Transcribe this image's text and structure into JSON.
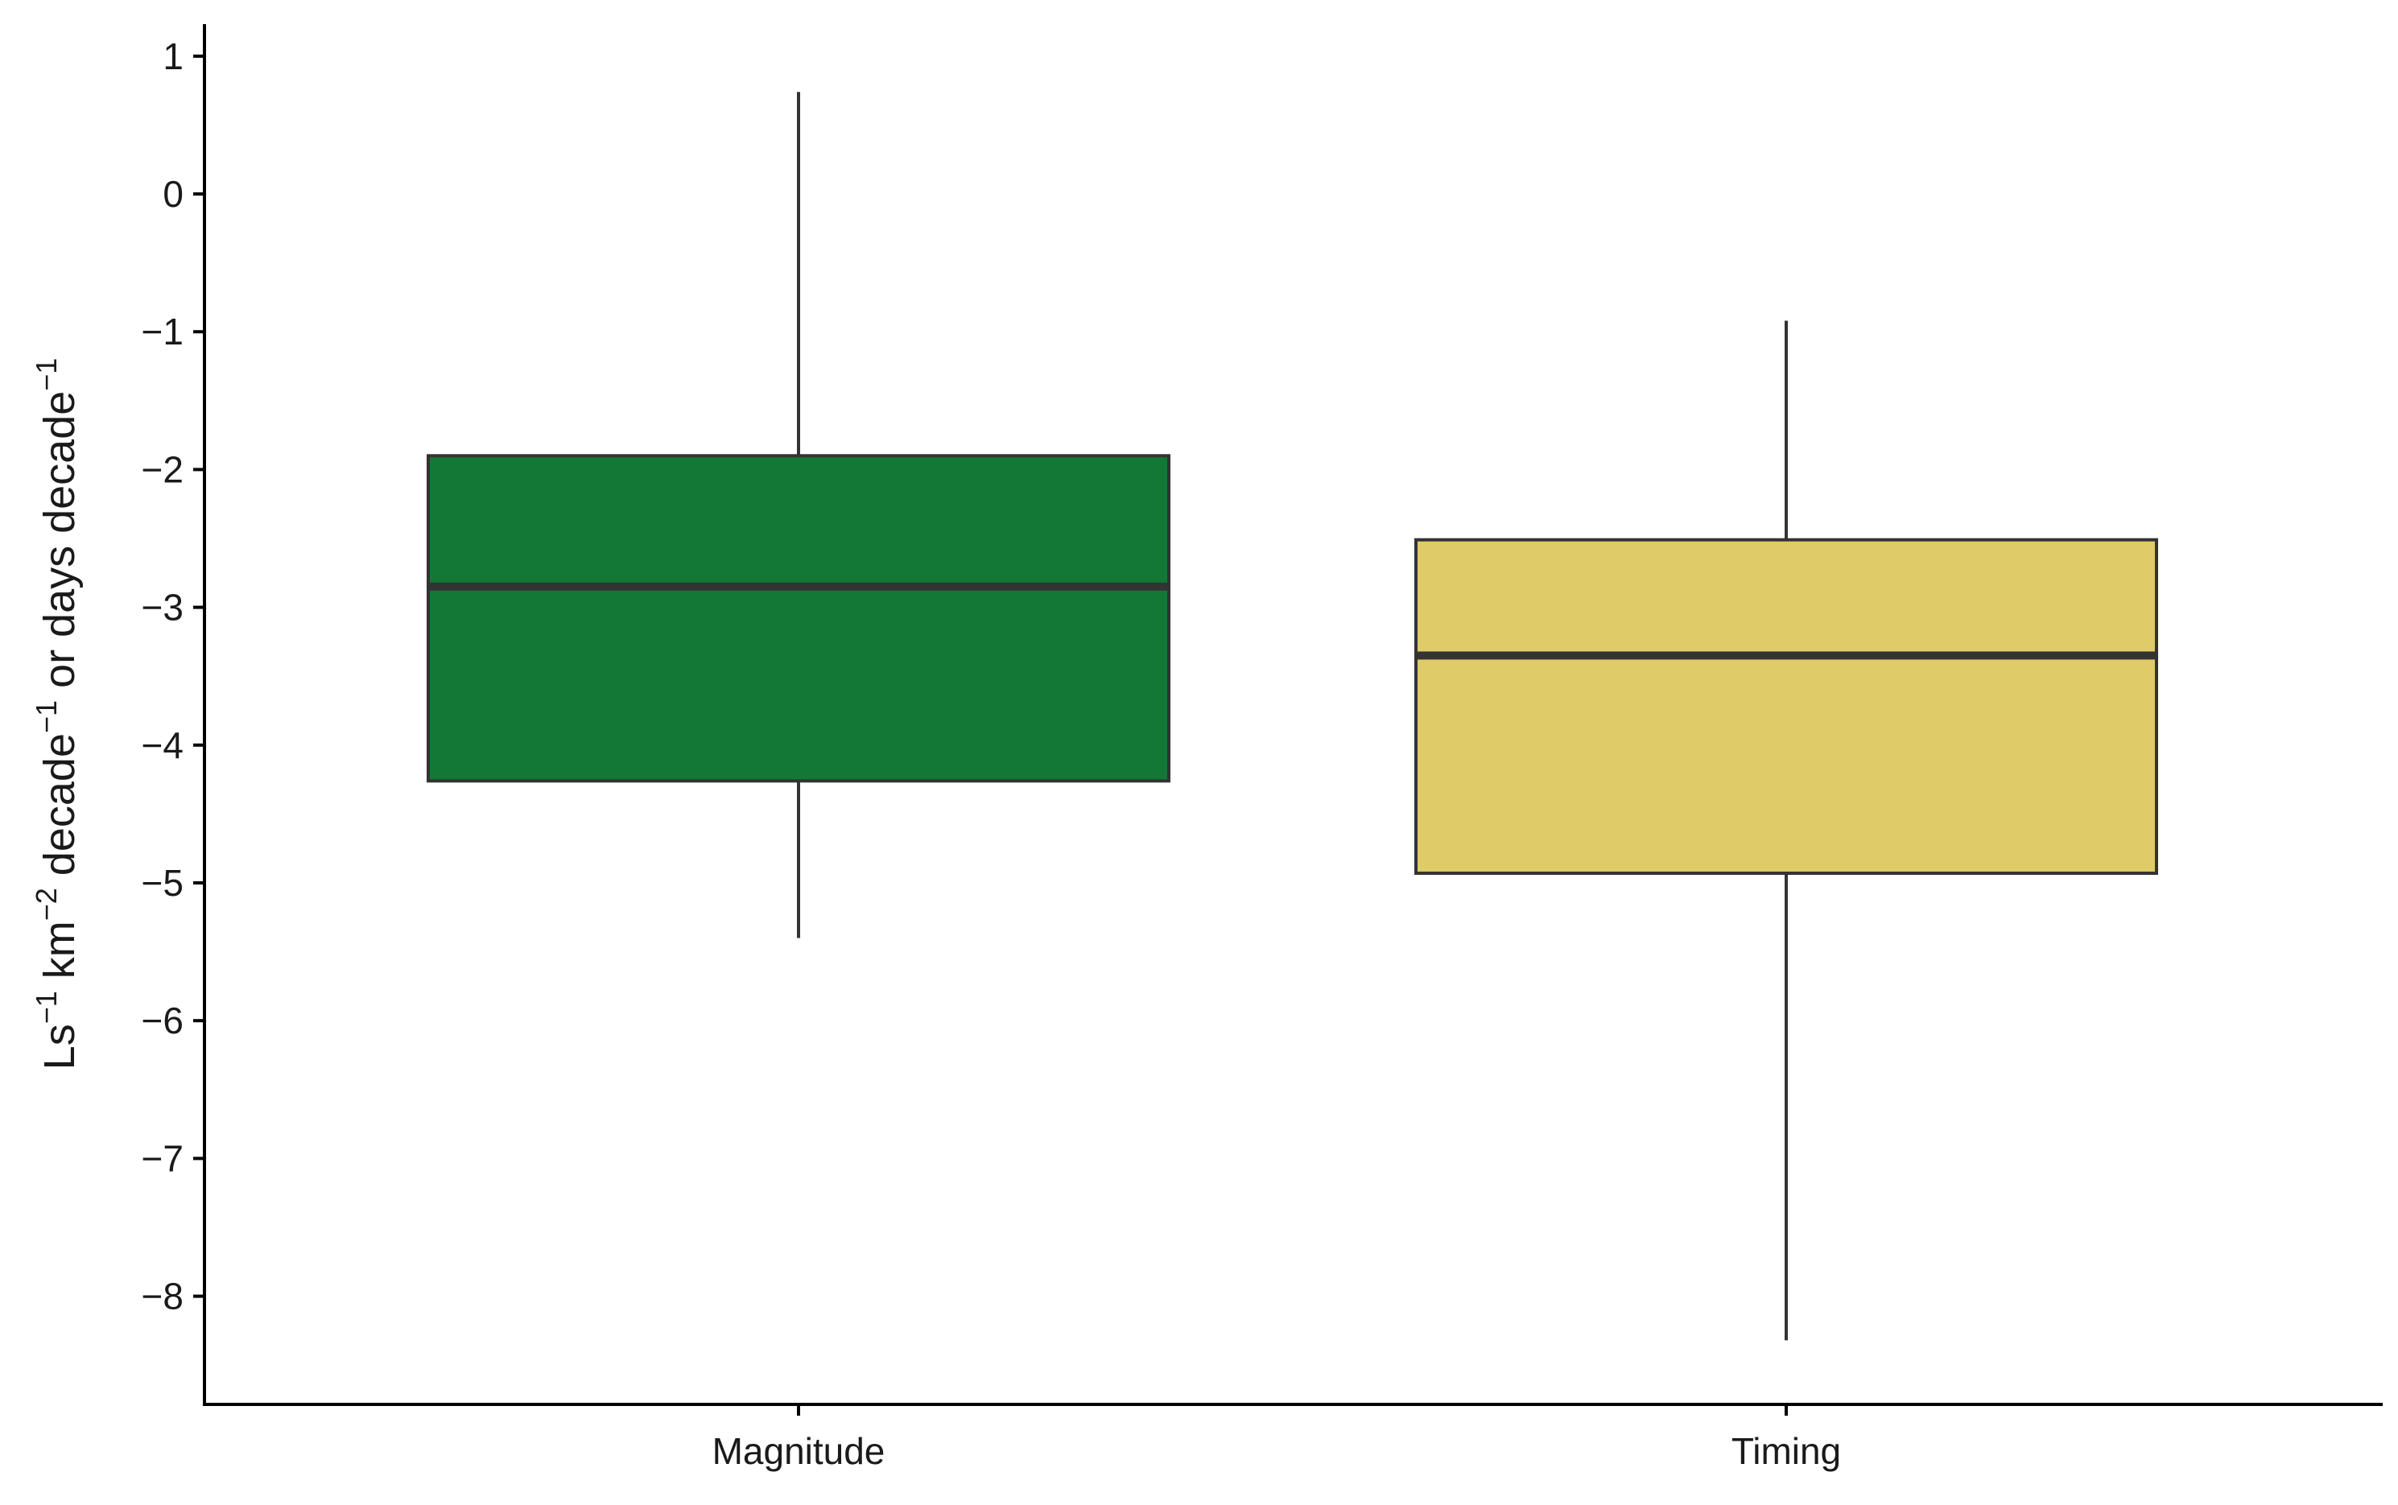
{
  "chart_data": {
    "type": "box",
    "categories": [
      "Magnitude",
      "Timing"
    ],
    "boxes": [
      {
        "category": "Magnitude",
        "whisker_low": -5.4,
        "q1": -4.26,
        "median": -2.85,
        "q3": -1.9,
        "whisker_high": 0.74,
        "color": "#137835"
      },
      {
        "category": "Timing",
        "whisker_low": -8.32,
        "q1": -4.93,
        "median": -3.35,
        "q3": -2.51,
        "whisker_high": -0.92,
        "color": "#dfcb67"
      }
    ],
    "ylabel_parts": [
      "Ls",
      "−1",
      " km",
      "−2",
      " decade",
      "−1",
      " or days decade",
      "−1"
    ],
    "yticks": [
      1,
      0,
      -1,
      -2,
      -3,
      -4,
      -5,
      -6,
      -7,
      -8
    ],
    "ylim": [
      -8.85,
      1.2
    ],
    "grid": false,
    "legend": "none"
  }
}
